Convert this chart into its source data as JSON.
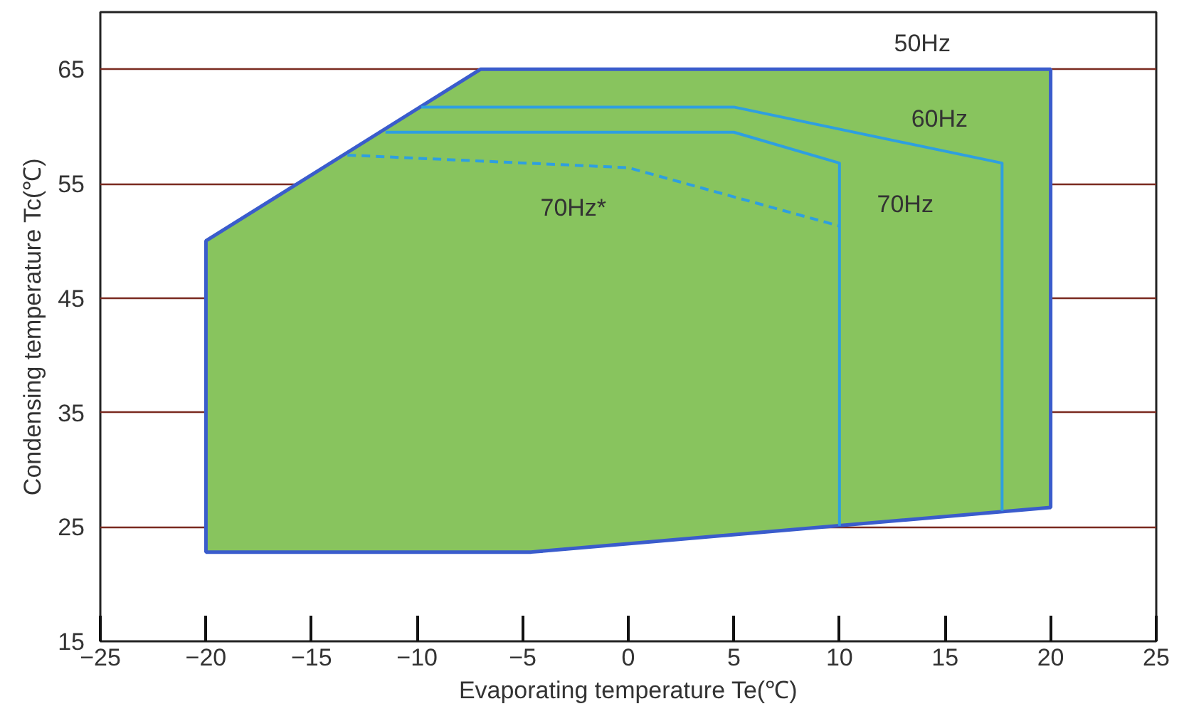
{
  "chart_data": {
    "type": "line",
    "xlabel": "Evaporating temperature Te(℃)",
    "ylabel": "Condensing temperature Tc(℃)",
    "xlim": [
      -25,
      25
    ],
    "xticks": [
      -25,
      -20,
      -15,
      -10,
      -5,
      0,
      5,
      10,
      15,
      20,
      25
    ],
    "ylim": [
      15,
      70
    ],
    "yticks": [
      15,
      25,
      35,
      45,
      55,
      65
    ],
    "grid": "y",
    "series": [
      {
        "name": "50Hz",
        "type": "area",
        "color": "#88c45e",
        "x": [
          -20,
          -4.6,
          20,
          20,
          -7,
          -20,
          -20
        ],
        "values": [
          22.8,
          22.8,
          26.7,
          65,
          65,
          50,
          22.8
        ]
      },
      {
        "name": "60Hz",
        "color": "#2e9fe0",
        "x": [
          -9.8,
          5,
          17.7,
          17.7
        ],
        "values": [
          61.7,
          61.7,
          56.8,
          26.4
        ]
      },
      {
        "name": "70Hz",
        "color": "#2e9fe0",
        "x": [
          -11.5,
          5,
          10,
          10
        ],
        "values": [
          59.5,
          59.5,
          56.8,
          25.1
        ]
      },
      {
        "name": "70Hz*",
        "line_style": "dashed",
        "color": "#2e9fe0",
        "x": [
          -13.3,
          0,
          10
        ],
        "values": [
          57.5,
          56.4,
          51.3
        ]
      }
    ]
  }
}
